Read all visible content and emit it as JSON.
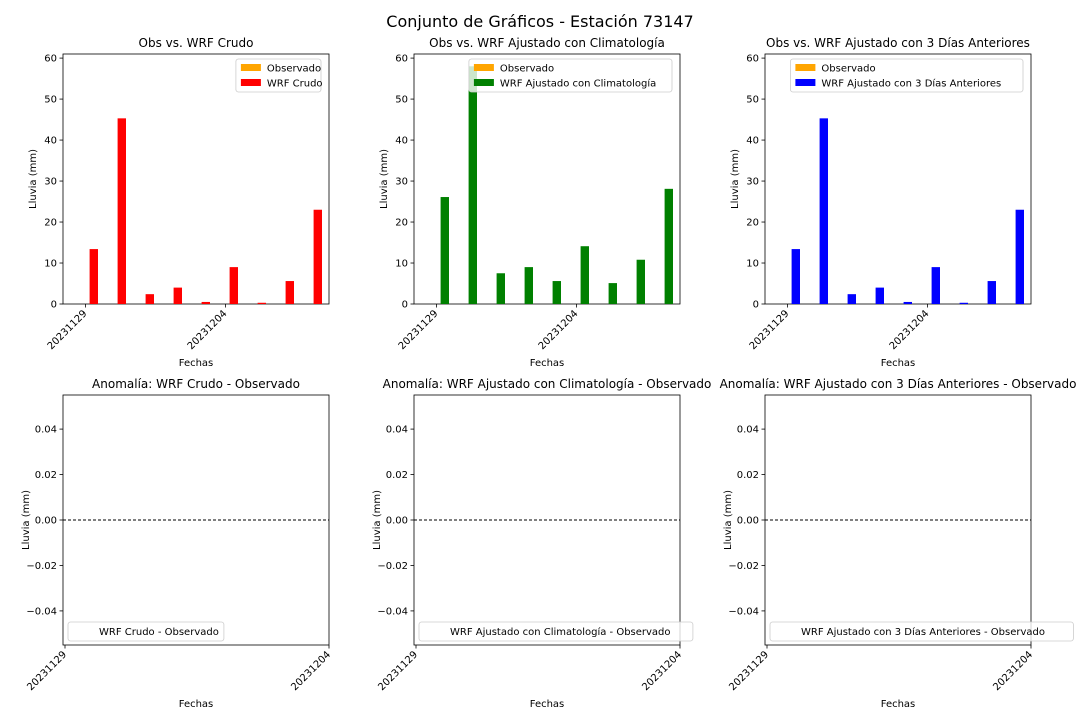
{
  "figure": {
    "title": "Conjunto de Gráficos - Estación 73147"
  },
  "chart_data": [
    {
      "type": "bar",
      "title": "Obs vs. WRF Crudo",
      "xlabel": "Fechas",
      "ylabel": "Lluvia (mm)",
      "ylim": [
        0,
        61
      ],
      "yticks": [
        0,
        10,
        20,
        30,
        40,
        50,
        60
      ],
      "x": [
        "20231129",
        "20231130",
        "20231201",
        "20231202",
        "20231203",
        "20231204",
        "20231205",
        "20231206",
        "20231207"
      ],
      "xticklabels": [
        "20231129",
        "20231204"
      ],
      "series": [
        {
          "name": "Observado",
          "color": "#ffa500",
          "values": [
            0,
            0,
            0,
            0,
            0,
            0,
            0,
            0,
            0
          ]
        },
        {
          "name": "WRF Crudo",
          "color": "#ff0000",
          "values": [
            13.4,
            45.3,
            2.4,
            4.0,
            0.5,
            9.0,
            0.3,
            5.6,
            23.0
          ]
        }
      ],
      "legend": "upper right"
    },
    {
      "type": "bar",
      "title": "Obs vs. WRF Ajustado con Climatología",
      "xlabel": "Fechas",
      "ylabel": "Lluvia (mm)",
      "ylim": [
        0,
        61
      ],
      "yticks": [
        0,
        10,
        20,
        30,
        40,
        50,
        60
      ],
      "x": [
        "20231129",
        "20231130",
        "20231201",
        "20231202",
        "20231203",
        "20231204",
        "20231205",
        "20231206",
        "20231207"
      ],
      "xticklabels": [
        "20231129",
        "20231204"
      ],
      "series": [
        {
          "name": "Observado",
          "color": "#ffa500",
          "values": [
            0,
            0,
            0,
            0,
            0,
            0,
            0,
            0,
            0
          ]
        },
        {
          "name": "WRF Ajustado con Climatología",
          "color": "#008000",
          "values": [
            26.1,
            58.0,
            7.5,
            9.0,
            5.6,
            14.1,
            5.1,
            10.8,
            28.1
          ]
        }
      ],
      "legend": "upper right"
    },
    {
      "type": "bar",
      "title": "Obs vs. WRF Ajustado con 3 Días Anteriores",
      "xlabel": "Fechas",
      "ylabel": "Lluvia (mm)",
      "ylim": [
        0,
        61
      ],
      "yticks": [
        0,
        10,
        20,
        30,
        40,
        50,
        60
      ],
      "x": [
        "20231129",
        "20231130",
        "20231201",
        "20231202",
        "20231203",
        "20231204",
        "20231205",
        "20231206",
        "20231207"
      ],
      "xticklabels": [
        "20231129",
        "20231204"
      ],
      "series": [
        {
          "name": "Observado",
          "color": "#ffa500",
          "values": [
            0,
            0,
            0,
            0,
            0,
            0,
            0,
            0,
            0
          ]
        },
        {
          "name": "WRF Ajustado con 3 Días Anteriores",
          "color": "#0000ff",
          "values": [
            13.4,
            45.3,
            2.4,
            4.0,
            0.5,
            9.0,
            0.3,
            5.6,
            23.0
          ]
        }
      ],
      "legend": "upper right"
    },
    {
      "type": "line",
      "title": "Anomalía: WRF Crudo - Observado",
      "xlabel": "Fechas",
      "ylabel": "Lluvia (mm)",
      "ylim": [
        -0.055,
        0.055
      ],
      "yticks": [
        -0.04,
        -0.02,
        0.0,
        0.02,
        0.04
      ],
      "yticklabels": [
        "−0.04",
        "−0.02",
        "0.00",
        "0.02",
        "0.04"
      ],
      "xticklabels": [
        "20231129",
        "20231204"
      ],
      "series": [
        {
          "name": "WRF Crudo - Observado",
          "values": []
        }
      ],
      "reference_line": {
        "y": 0,
        "style": "dashed",
        "color": "#000000"
      },
      "legend": "lower left"
    },
    {
      "type": "line",
      "title": "Anomalía: WRF Ajustado con Climatología - Observado",
      "xlabel": "Fechas",
      "ylabel": "Lluvia (mm)",
      "ylim": [
        -0.055,
        0.055
      ],
      "yticks": [
        -0.04,
        -0.02,
        0.0,
        0.02,
        0.04
      ],
      "yticklabels": [
        "−0.04",
        "−0.02",
        "0.00",
        "0.02",
        "0.04"
      ],
      "xticklabels": [
        "20231129",
        "20231204"
      ],
      "series": [
        {
          "name": "WRF Ajustado con Climatología - Observado",
          "values": []
        }
      ],
      "reference_line": {
        "y": 0,
        "style": "dashed",
        "color": "#000000"
      },
      "legend": "lower left"
    },
    {
      "type": "line",
      "title": "Anomalía: WRF Ajustado con 3 Días Anteriores - Observado",
      "xlabel": "Fechas",
      "ylabel": "Lluvia (mm)",
      "ylim": [
        -0.055,
        0.055
      ],
      "yticks": [
        -0.04,
        -0.02,
        0.0,
        0.02,
        0.04
      ],
      "yticklabels": [
        "−0.04",
        "−0.02",
        "0.00",
        "0.02",
        "0.04"
      ],
      "xticklabels": [
        "20231129",
        "20231204"
      ],
      "series": [
        {
          "name": "WRF Ajustado con 3 Días Anteriores - Observado",
          "values": []
        }
      ],
      "reference_line": {
        "y": 0,
        "style": "dashed",
        "color": "#000000"
      },
      "legend": "lower left"
    }
  ]
}
